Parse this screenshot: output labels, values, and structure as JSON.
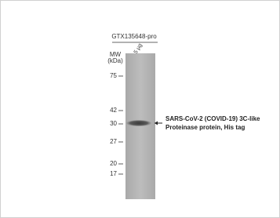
{
  "header": {
    "antibody": "GTX135648-pro",
    "lane": "5 µg"
  },
  "mw_header": [
    "MW",
    "(kDa)"
  ],
  "markers": [
    75,
    42,
    30,
    27,
    20,
    17
  ],
  "annotation": [
    "SARS-CoV-2  (COVID-19)  3C-like",
    "Proteinase protein, His tag"
  ]
}
